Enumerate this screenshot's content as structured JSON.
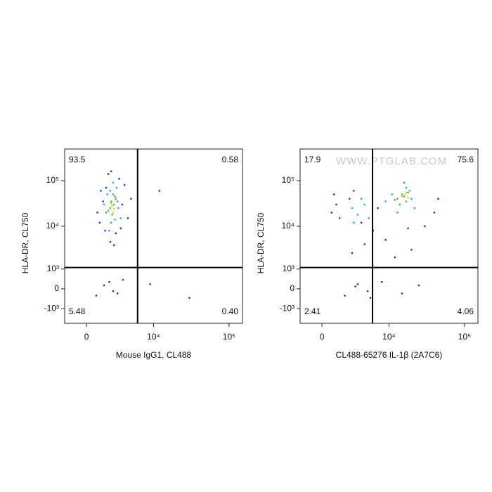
{
  "chart_data": [
    {
      "type": "scatter",
      "x_label": "Mouse IgG1, CL488",
      "y_label": "HLA-DR, CL750",
      "scale": "arcsinh",
      "xlim": [
        -1900,
        150000
      ],
      "ylim": [
        -2350,
        495000
      ],
      "xticks": [
        0,
        {
          "value": 10000,
          "label": "10⁴"
        },
        {
          "value": 100000,
          "label": "10⁵"
        }
      ],
      "yticks": [
        {
          "value": -1000,
          "label": "-10³"
        },
        0,
        {
          "value": 1000,
          "label": "10³"
        },
        {
          "value": 10000,
          "label": "10⁴"
        },
        {
          "value": 100000,
          "label": "10⁵"
        }
      ],
      "quadrant_gate": {
        "x": 6000,
        "y": 1100
      },
      "quadrants": {
        "values": [
          93.5,
          0.58,
          5.48,
          0.4
        ],
        "value_labels": [
          "93.5",
          "0.58",
          "5.48",
          "0.40"
        ]
      },
      "series": [
        {
          "color": "#1f3c9a",
          "x": [
            1200,
            3800,
            1600,
            4300,
            2100,
            900,
            3100,
            1900,
            2700,
            1400,
            3500,
            2500,
            1100,
            1700,
            3300,
            2200,
            4800,
            12000,
            30000,
            2000,
            2900,
            1500,
            3600,
            800,
            9000,
            2400
          ],
          "y": [
            60000,
            80000,
            8000,
            15000,
            4500,
            20000,
            110000,
            140000,
            7000,
            35000,
            30000,
            3800,
            12000,
            70000,
            9000,
            160000,
            40000,
            60000,
            -400,
            300,
            -200,
            150,
            400,
            -300,
            200,
            -100
          ]
        },
        {
          "color": "#22a8d8",
          "x": [
            1800,
            2600,
            2200,
            3000,
            1500,
            2800,
            2000,
            3300,
            2400,
            1700,
            2900,
            2100
          ],
          "y": [
            50000,
            45000,
            12000,
            25000,
            30000,
            70000,
            8000,
            15000,
            90000,
            20000,
            35000,
            60000
          ]
        },
        {
          "color": "#4cb84c",
          "x": [
            2100,
            2500,
            2300,
            2700,
            1900,
            2400,
            2200,
            2600
          ],
          "y": [
            25000,
            30000,
            18000,
            40000,
            22000,
            50000,
            35000,
            14000
          ]
        },
        {
          "color": "#e0d02a",
          "x": [
            2300,
            2500,
            2200,
            2400
          ],
          "y": [
            28000,
            24000,
            32000,
            20000
          ]
        }
      ]
    },
    {
      "type": "scatter",
      "x_label": "CL488-65276 IL-1β (2A7C6)",
      "y_label": "HLA-DR, CL750",
      "watermark": "WWW.PTGLAB.COM",
      "scale": "arcsinh",
      "xlim": [
        -1900,
        150000
      ],
      "ylim": [
        -2350,
        495000
      ],
      "xticks": [
        0,
        {
          "value": 10000,
          "label": "10⁴"
        },
        {
          "value": 100000,
          "label": "10⁵"
        }
      ],
      "yticks": [
        {
          "value": -1000,
          "label": "-10³"
        },
        0,
        {
          "value": 1000,
          "label": "10³"
        },
        {
          "value": 10000,
          "label": "10⁴"
        },
        {
          "value": 100000,
          "label": "10⁵"
        }
      ],
      "quadrant_gate": {
        "x": 5900,
        "y": 1100
      },
      "quadrants": {
        "values": [
          17.9,
          75.6,
          2.41,
          4.06
        ],
        "value_labels": [
          "17.9",
          "75.6",
          "2.41",
          "4.06"
        ]
      },
      "series": [
        {
          "color": "#1f3c9a",
          "x": [
            800,
            1500,
            2500,
            4000,
            1200,
            3000,
            6000,
            9000,
            20000,
            30000,
            45000,
            2000,
            3500,
            5000,
            8000,
            15000,
            25000,
            1000,
            2800,
            4500,
            7000,
            12000,
            18000,
            40000,
            3200,
            5500
          ],
          "y": [
            20000,
            15000,
            40000,
            12000,
            30000,
            60000,
            8000,
            5000,
            3000,
            10000,
            40000,
            -300,
            200,
            -100,
            300,
            -200,
            150,
            50000,
            2500,
            4000,
            25000,
            2000,
            9000,
            20000,
            100,
            -400
          ]
        },
        {
          "color": "#22a8d8",
          "x": [
            2800,
            3500,
            4500,
            5200,
            3000,
            4000,
            11000,
            14000,
            17000,
            20000,
            13000,
            22000,
            9000,
            16000
          ],
          "y": [
            25000,
            18000,
            30000,
            15000,
            12000,
            40000,
            50000,
            30000,
            70000,
            40000,
            20000,
            25000,
            35000,
            90000
          ]
        },
        {
          "color": "#4cb84c",
          "x": [
            13000,
            15000,
            17000,
            19000,
            14000,
            16000,
            18000,
            12000
          ],
          "y": [
            40000,
            50000,
            35000,
            60000,
            30000,
            45000,
            55000,
            38000
          ]
        },
        {
          "color": "#e0d02a",
          "x": [
            15000,
            16500,
            18000,
            17000
          ],
          "y": [
            45000,
            50000,
            42000,
            55000
          ]
        }
      ]
    }
  ]
}
